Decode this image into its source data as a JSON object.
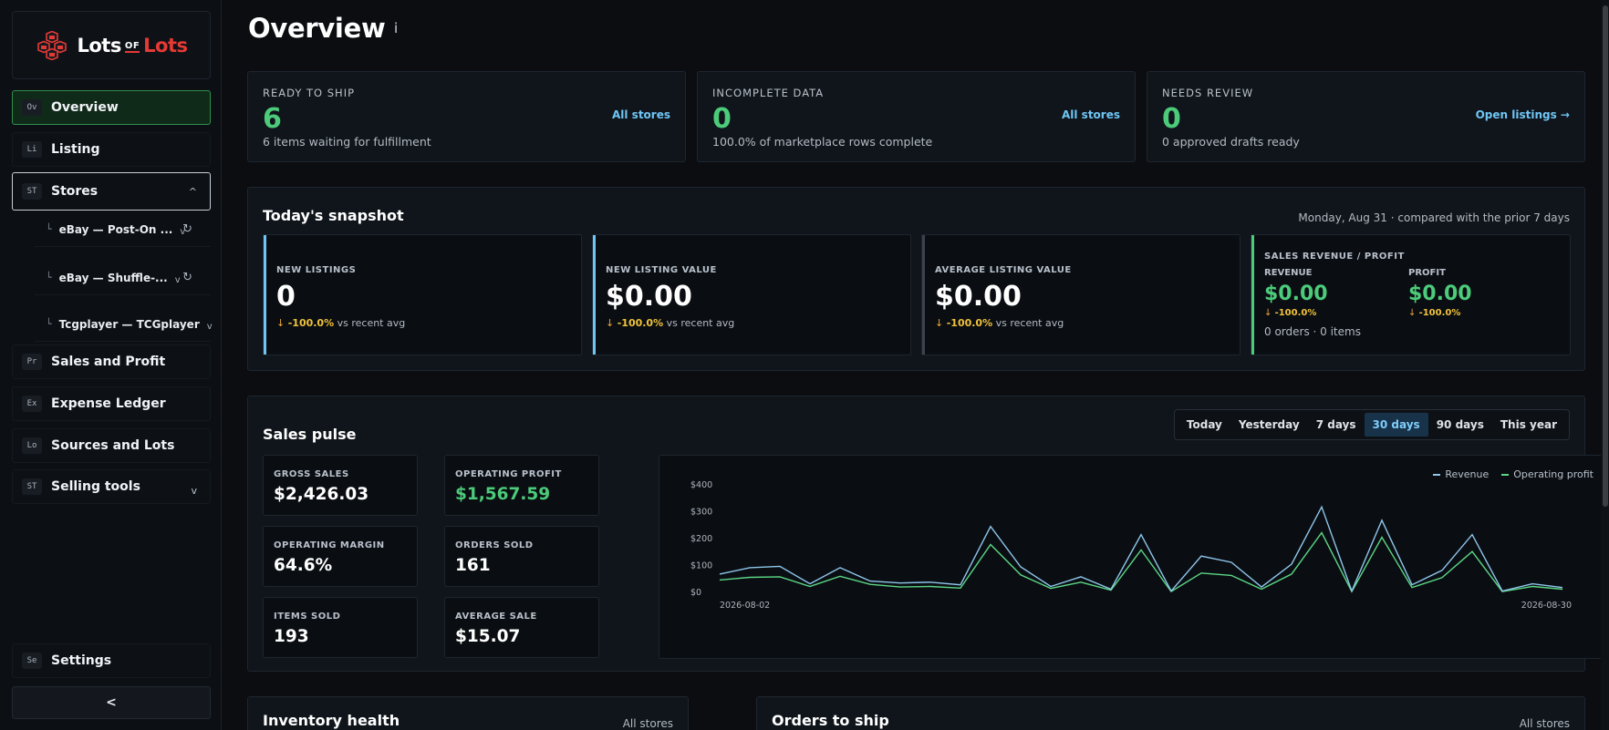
{
  "brand": {
    "part1": "Lots",
    "part2": "OF",
    "part3": "Lots",
    "accent": "#e53935"
  },
  "nav": {
    "overview": {
      "abbr": "Ov",
      "label": "Overview"
    },
    "listing": {
      "abbr": "Li",
      "label": "Listing"
    },
    "stores": {
      "abbr": "ST",
      "label": "Stores",
      "chevron": "^"
    },
    "store_items": [
      {
        "label": "eBay — Post-On ...",
        "chevron": "v",
        "icon": "sync-icon"
      },
      {
        "label": "eBay — Shuffle-...",
        "chevron": "v",
        "icon": "sync-icon"
      },
      {
        "label": "Tcgplayer — TCGplayer",
        "chevron": "v"
      }
    ],
    "sales": {
      "abbr": "Pr",
      "label": "Sales and Profit"
    },
    "expense": {
      "abbr": "Ex",
      "label": "Expense Ledger"
    },
    "sources": {
      "abbr": "Lo",
      "label": "Sources and Lots"
    },
    "selling": {
      "abbr": "ST",
      "label": "Selling tools",
      "chevron": "v"
    },
    "settings": {
      "abbr": "Se",
      "label": "Settings"
    },
    "collapse": "<"
  },
  "header": {
    "title": "Overview",
    "info": "i"
  },
  "kpis": {
    "ready": {
      "label": "READY TO SHIP",
      "value": "6",
      "sub": "6 items waiting for fulfillment",
      "link": "All stores"
    },
    "incomplete": {
      "label": "INCOMPLETE DATA",
      "value": "0",
      "sub": "100.0% of marketplace rows complete",
      "link": "All stores"
    },
    "review": {
      "label": "NEEDS REVIEW",
      "value": "0",
      "sub": "0 approved drafts ready",
      "link": "Open listings →"
    }
  },
  "snapshot": {
    "title": "Today's snapshot",
    "date": "Monday, Aug 31 · compared with the prior 7 days",
    "new_listings": {
      "label": "NEW LISTINGS",
      "value": "0",
      "arrow": "↓",
      "pct": "-100.0%",
      "vs": "vs recent avg"
    },
    "new_value": {
      "label": "NEW LISTING VALUE",
      "value": "$0.00",
      "arrow": "↓",
      "pct": "-100.0%",
      "vs": "vs recent avg"
    },
    "avg_value": {
      "label": "AVERAGE LISTING VALUE",
      "value": "$0.00",
      "arrow": "↓",
      "pct": "-100.0%",
      "vs": "vs recent avg"
    },
    "revenue_profit": {
      "label": "SALES REVENUE / PROFIT",
      "rev_label": "REVENUE",
      "rev_value": "$0.00",
      "rev_arrow": "↓",
      "rev_pct": "-100.0%",
      "profit_label": "PROFIT",
      "profit_value": "$0.00",
      "profit_arrow": "↓",
      "profit_pct": "-100.0%",
      "footer": "0 orders · 0 items"
    }
  },
  "pulse": {
    "title": "Sales pulse",
    "ranges": [
      "Today",
      "Yesterday",
      "7 days",
      "30 days",
      "90 days",
      "This year"
    ],
    "selected_range": "30 days",
    "stats": {
      "gross": {
        "label": "GROSS SALES",
        "value": "$2,426.03"
      },
      "op_profit": {
        "label": "OPERATING PROFIT",
        "value": "$1,567.59"
      },
      "margin": {
        "label": "OPERATING MARGIN",
        "value": "64.6%"
      },
      "orders": {
        "label": "ORDERS SOLD",
        "value": "161"
      },
      "items": {
        "label": "ITEMS SOLD",
        "value": "193"
      },
      "avg": {
        "label": "AVERAGE SALE",
        "value": "$15.07"
      }
    }
  },
  "chart_data": {
    "type": "line",
    "x_start": "2026-08-02",
    "x_end": "2026-08-30",
    "x_tick_labels": [
      "2026-08-02",
      "2026-08-30"
    ],
    "y_ticks": [
      "$400",
      "$300",
      "$200",
      "$100",
      "$0"
    ],
    "ylim": [
      0,
      400
    ],
    "legend_position": "top-right",
    "series": [
      {
        "name": "Revenue",
        "color": "#8fc6ec",
        "values": [
          68,
          92,
          97,
          32,
          92,
          42,
          35,
          38,
          28,
          245,
          95,
          22,
          58,
          12,
          215,
          5,
          135,
          112,
          20,
          105,
          318,
          5,
          268,
          28,
          82,
          215,
          5,
          32,
          18
        ]
      },
      {
        "name": "Operating profit",
        "color": "#5cd685",
        "values": [
          46,
          56,
          58,
          22,
          60,
          30,
          20,
          22,
          16,
          178,
          65,
          15,
          38,
          8,
          158,
          3,
          72,
          63,
          12,
          68,
          222,
          3,
          205,
          18,
          55,
          152,
          3,
          22,
          12
        ]
      }
    ]
  },
  "inventory": {
    "title": "Inventory health",
    "link": "All stores"
  },
  "orders": {
    "title": "Orders to ship",
    "link": "All stores"
  }
}
